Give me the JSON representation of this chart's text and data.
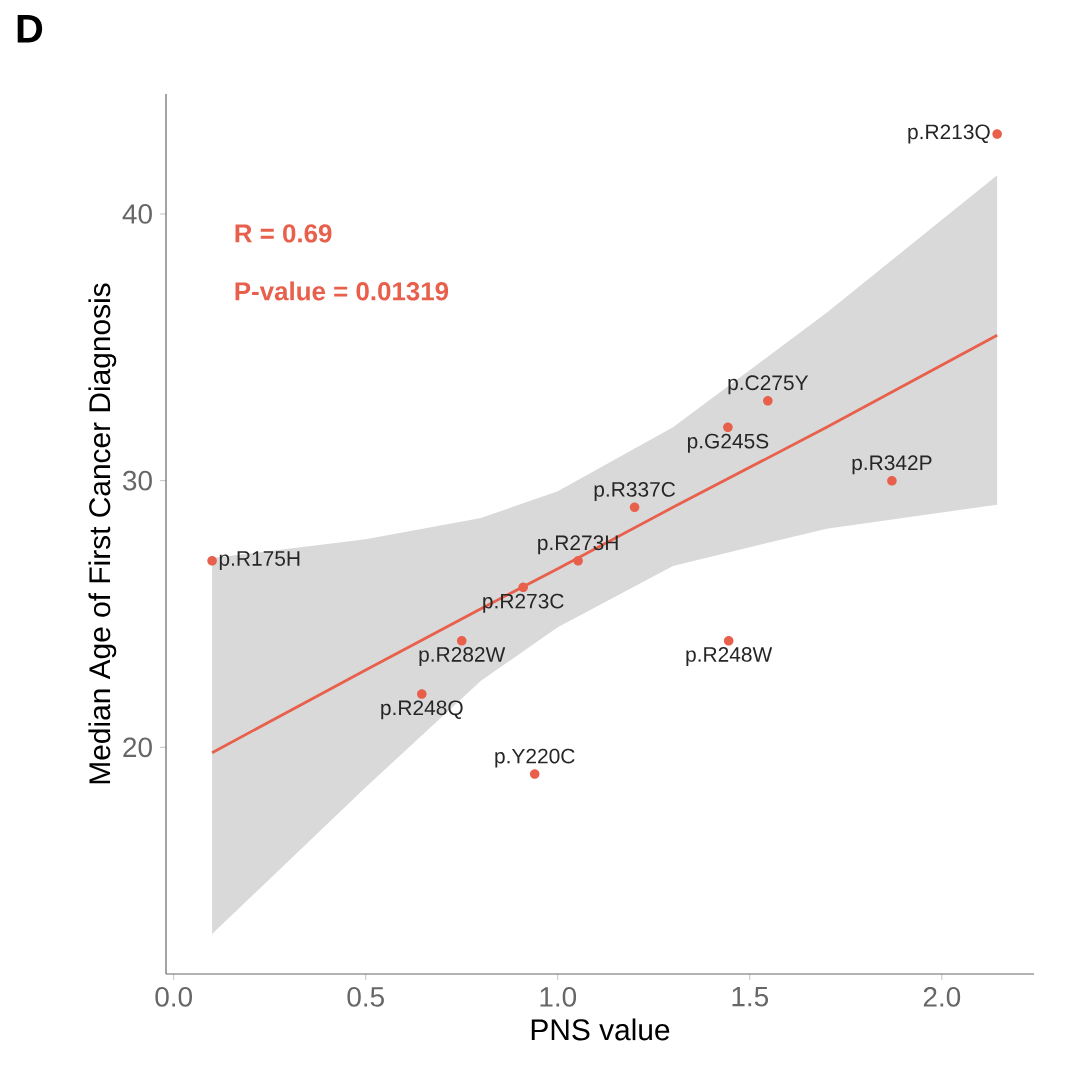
{
  "chart_data": {
    "type": "scatter",
    "title": "D",
    "xlabel": "PNS value",
    "ylabel": "Median Age of First Cancer Diagnosis",
    "annotations": [
      "R = 0.69",
      "P-value = 0.01319"
    ],
    "xlim": [
      -0.02,
      2.24
    ],
    "ylim": [
      11.5,
      44.5
    ],
    "xticks": [
      {
        "value": 0,
        "label": "0.0"
      },
      0.5,
      {
        "value": 1,
        "label": "1.0"
      },
      1.5,
      {
        "value": 2,
        "label": "2.0"
      }
    ],
    "yticks": [
      20,
      30,
      40
    ],
    "grid": false,
    "series": [
      {
        "type": "line",
        "color": "#e8604c",
        "line_style": "solid",
        "x": [
          0.1,
          0.5,
          0.8,
          1.0,
          1.3,
          1.7,
          2.144
        ],
        "values": [
          19.8,
          22.9,
          25.2,
          26.7,
          29.0,
          32.0,
          35.45
        ],
        "lower": [
          13,
          18.5,
          22.5,
          24.5,
          26.8,
          28.2,
          29.1
        ],
        "upper": [
          27.1,
          27.8,
          28.6,
          29.6,
          32.0,
          36.3,
          41.45
        ]
      },
      {
        "type": "scatter",
        "marker": "circle",
        "color": "#e8604c",
        "x": [
          2.144,
          1.547,
          1.443,
          1.87,
          1.2,
          0.1,
          1.053,
          0.91,
          0.75,
          1.445,
          0.646,
          0.94
        ],
        "values": [
          43,
          33,
          32,
          30,
          29,
          27,
          27,
          26,
          24,
          24,
          22,
          19
        ],
        "value_labels": [
          "p.R213Q",
          "p.C275Y",
          "p.G245S",
          "p.R342P",
          "p.R337C",
          "p.R175H",
          "p.R273H",
          "p.R273C",
          "p.R282W",
          "p.R248W",
          "p.R248Q",
          "p.Y220C"
        ]
      }
    ]
  }
}
